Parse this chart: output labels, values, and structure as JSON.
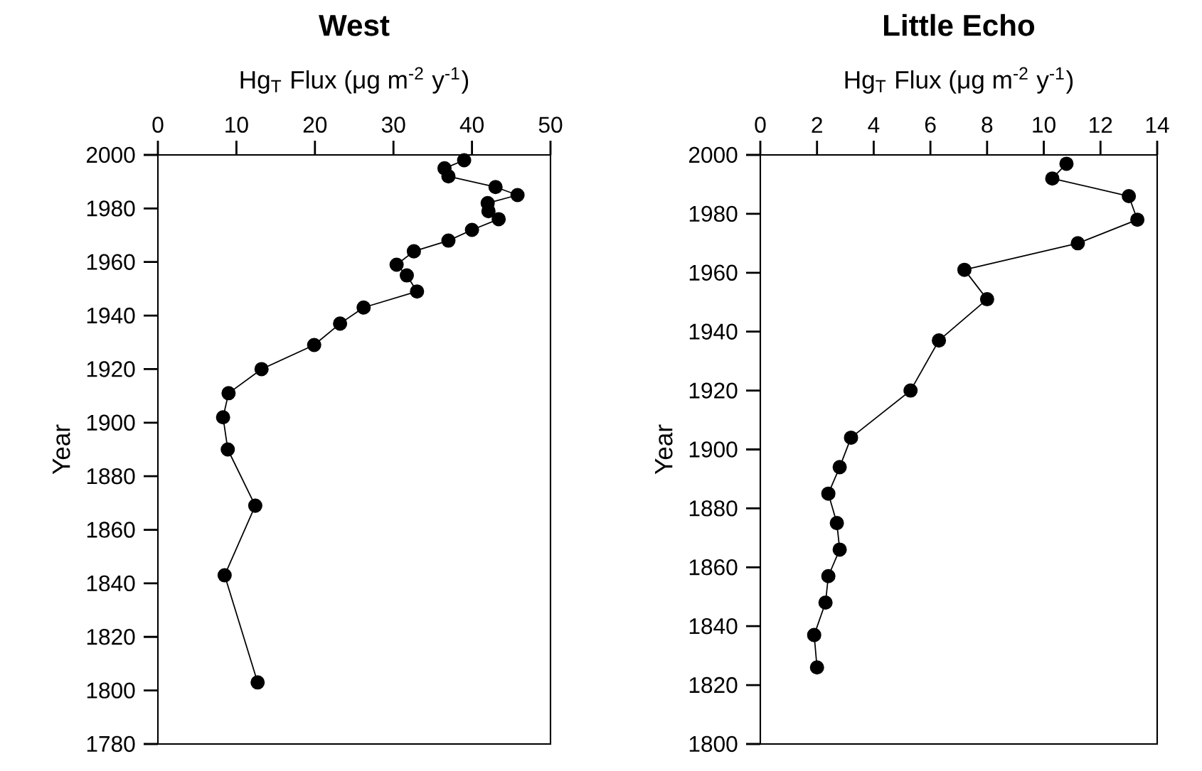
{
  "chart_data": [
    {
      "type": "line",
      "title": "**West**",
      "xlabel": "Hg$_{T}$ Flux (μg m$^{-2}$ y$^{-1}$)",
      "ylabel": "Year",
      "color": "#000000",
      "marker": "circle",
      "x": [
        39.0,
        36.5,
        37.0,
        43.0,
        45.8,
        42.0,
        42.1,
        43.4,
        40.0,
        37.0,
        32.6,
        30.4,
        31.7,
        33.0,
        26.2,
        23.2,
        19.9,
        13.2,
        9.0,
        8.3,
        8.9,
        12.4,
        8.5,
        12.7
      ],
      "values": [
        1998,
        1995,
        1992,
        1988,
        1985,
        1982,
        1979,
        1976,
        1972,
        1968,
        1964,
        1959,
        1955,
        1949,
        1943,
        1937,
        1929,
        1920,
        1911,
        1902,
        1890,
        1869,
        1843,
        1803
      ],
      "xlim": [
        0,
        50
      ],
      "xticks": [
        0,
        10,
        20,
        30,
        40,
        50
      ],
      "ylim": [
        1780,
        2000
      ],
      "yticks": [
        1780,
        1800,
        1820,
        1840,
        1860,
        1880,
        1900,
        1920,
        1940,
        1960,
        1980,
        2000
      ]
    },
    {
      "type": "line",
      "title": "**Little Echo**",
      "xlabel": "Hg$_{T}$ Flux (μg m$^{-2}$ y$^{-1}$)",
      "ylabel": "Year",
      "color": "#000000",
      "marker": "circle",
      "x": [
        10.8,
        10.3,
        13.0,
        13.3,
        11.2,
        7.2,
        8.0,
        6.3,
        5.3,
        3.2,
        2.8,
        2.4,
        2.7,
        2.8,
        2.4,
        2.3,
        1.9,
        2.0
      ],
      "values": [
        1997,
        1992,
        1986,
        1978,
        1970,
        1961,
        1951,
        1937,
        1920,
        1904,
        1894,
        1885,
        1875,
        1866,
        1857,
        1848,
        1837,
        1826
      ],
      "xlim": [
        0,
        14
      ],
      "xticks": [
        0,
        2,
        4,
        6,
        8,
        10,
        12,
        14
      ],
      "ylim": [
        1800,
        2000
      ],
      "yticks": [
        1800,
        1820,
        1840,
        1860,
        1880,
        1900,
        1920,
        1940,
        1960,
        1980,
        2000
      ]
    }
  ]
}
